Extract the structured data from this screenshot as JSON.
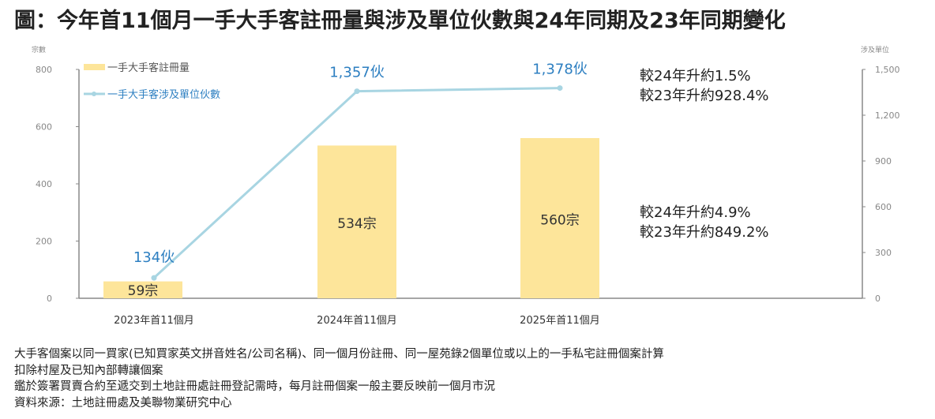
{
  "title": "圖：今年首11個月一手大手客註冊量與涉及單位伙數與24年同期及23年同期變化",
  "chart_data": {
    "type": "bar+line",
    "categories": [
      "2023年首11個月",
      "2024年首11個月",
      "2025年首11個月"
    ],
    "series": [
      {
        "name": "一手大手客註冊量",
        "type": "bar",
        "axis": "left",
        "values": [
          59,
          534,
          560
        ],
        "labels": [
          "59宗",
          "534宗",
          "560宗"
        ],
        "color": "#fde59a"
      },
      {
        "name": "一手大手客涉及單位伙數",
        "type": "line",
        "axis": "right",
        "values": [
          134,
          1357,
          1378
        ],
        "labels": [
          "134伙",
          "1,357伙",
          "1,378伙"
        ],
        "color": "#a8d5e2"
      }
    ],
    "left_axis": {
      "label": "宗數",
      "ylim": [
        0,
        800
      ],
      "ticks": [
        "0",
        "200",
        "400",
        "600",
        "800"
      ]
    },
    "right_axis": {
      "label": "涉及單位",
      "ylim": [
        0,
        1500
      ],
      "ticks": [
        "0",
        "300",
        "600",
        "900",
        "1,200",
        "1,500"
      ]
    },
    "legend_position": "top-left",
    "annotations": {
      "line": [
        "較24年升約1.5%",
        "較23年升約928.4%"
      ],
      "bar": [
        "較24年升約4.9%",
        "較23年升約849.2%"
      ]
    }
  },
  "notes": [
    "大手客個案以同一買家(已知買家英文拼音姓名/公司名稱)、同一個月份註冊、同一屋苑錄2個單位或以上的一手私宅註冊個案計算",
    "扣除村屋及已知內部轉讓個案",
    "鑑於簽署買賣合約至遞交到土地註冊處註冊登記需時，每月註冊個案一般主要反映前一個月市況",
    "資料來源：土地註冊處及美聯物業研究中心"
  ]
}
